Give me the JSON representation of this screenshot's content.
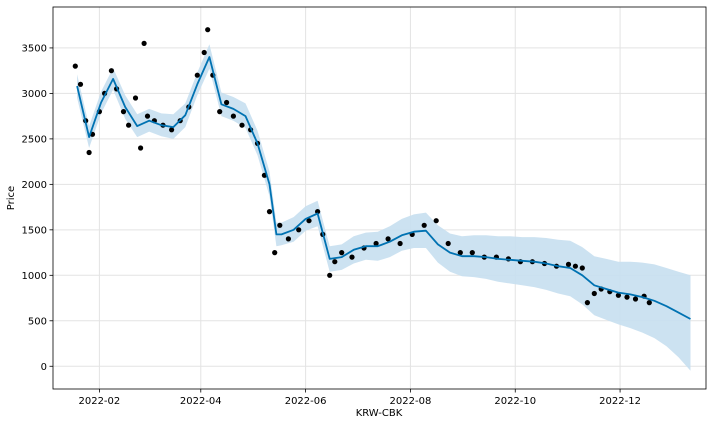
{
  "chart_data": {
    "type": "scatter",
    "title": "",
    "xlabel": "KRW-CBK",
    "ylabel": "Price",
    "grid": true,
    "x_ticks": [
      "2022-02",
      "2022-04",
      "2022-06",
      "2022-08",
      "2022-10",
      "2022-12"
    ],
    "y_ticks": [
      0,
      500,
      1000,
      1500,
      2000,
      2500,
      3000,
      3500
    ],
    "xlim": [
      "2022-01-05",
      "2023-01-20"
    ],
    "ylim": [
      -250,
      3950
    ],
    "colors": {
      "observed": "#000000",
      "forecast": "#0072B2",
      "uncertainty": "#c6dff0",
      "grid": "#e3e3e3"
    },
    "forecast": {
      "x": [
        "2022-01-19",
        "2022-01-26",
        "2022-02-02",
        "2022-02-09",
        "2022-02-16",
        "2022-02-23",
        "2022-03-02",
        "2022-03-09",
        "2022-03-16",
        "2022-03-23",
        "2022-03-30",
        "2022-04-06",
        "2022-04-13",
        "2022-04-20",
        "2022-04-27",
        "2022-05-04",
        "2022-05-11",
        "2022-05-15",
        "2022-05-18",
        "2022-05-25",
        "2022-06-01",
        "2022-06-08",
        "2022-06-15",
        "2022-06-22",
        "2022-06-29",
        "2022-07-06",
        "2022-07-13",
        "2022-07-20",
        "2022-07-27",
        "2022-08-03",
        "2022-08-10",
        "2022-08-17",
        "2022-08-24",
        "2022-08-31",
        "2022-09-07",
        "2022-09-14",
        "2022-09-21",
        "2022-09-28",
        "2022-10-05",
        "2022-10-12",
        "2022-10-19",
        "2022-10-26",
        "2022-11-02",
        "2022-11-09",
        "2022-11-16",
        "2022-11-23",
        "2022-11-30",
        "2022-12-07",
        "2022-12-14",
        "2022-12-21",
        "2022-12-28",
        "2023-01-04",
        "2023-01-11"
      ],
      "yhat": [
        3080,
        2520,
        2900,
        3160,
        2850,
        2640,
        2700,
        2650,
        2630,
        2760,
        3100,
        3400,
        2880,
        2830,
        2750,
        2450,
        2000,
        1450,
        1450,
        1500,
        1620,
        1680,
        1180,
        1200,
        1280,
        1320,
        1320,
        1370,
        1440,
        1480,
        1490,
        1340,
        1250,
        1210,
        1210,
        1200,
        1180,
        1170,
        1160,
        1150,
        1130,
        1100,
        1080,
        1000,
        890,
        850,
        810,
        790,
        760,
        720,
        660,
        590,
        520
      ],
      "yhat_lower": [
        2950,
        2400,
        2780,
        3040,
        2720,
        2520,
        2580,
        2530,
        2500,
        2630,
        2980,
        3270,
        2750,
        2700,
        2620,
        2320,
        1870,
        1320,
        1330,
        1370,
        1490,
        1540,
        1040,
        1060,
        1130,
        1170,
        1160,
        1200,
        1270,
        1300,
        1300,
        1140,
        1040,
        990,
        980,
        960,
        930,
        910,
        890,
        870,
        840,
        800,
        770,
        680,
        560,
        510,
        460,
        420,
        370,
        310,
        220,
        100,
        -50
      ],
      "yhat_upper": [
        3210,
        2640,
        3020,
        3280,
        2980,
        2770,
        2830,
        2780,
        2770,
        2890,
        3230,
        3540,
        3010,
        2960,
        2890,
        2590,
        2140,
        1580,
        1580,
        1640,
        1760,
        1820,
        1320,
        1340,
        1430,
        1470,
        1480,
        1540,
        1620,
        1670,
        1690,
        1550,
        1460,
        1430,
        1440,
        1440,
        1430,
        1430,
        1420,
        1420,
        1410,
        1390,
        1380,
        1310,
        1210,
        1180,
        1150,
        1150,
        1140,
        1120,
        1080,
        1040,
        1000
      ]
    },
    "observed": {
      "x": [
        "2022-01-18",
        "2022-01-21",
        "2022-01-24",
        "2022-01-26",
        "2022-01-28",
        "2022-02-01",
        "2022-02-04",
        "2022-02-08",
        "2022-02-11",
        "2022-02-15",
        "2022-02-18",
        "2022-02-22",
        "2022-02-25",
        "2022-02-27",
        "2022-03-01",
        "2022-03-05",
        "2022-03-10",
        "2022-03-15",
        "2022-03-20",
        "2022-03-25",
        "2022-03-30",
        "2022-04-03",
        "2022-04-05",
        "2022-04-08",
        "2022-04-12",
        "2022-04-16",
        "2022-04-20",
        "2022-04-25",
        "2022-04-30",
        "2022-05-04",
        "2022-05-08",
        "2022-05-11",
        "2022-05-14",
        "2022-05-17",
        "2022-05-22",
        "2022-05-28",
        "2022-06-03",
        "2022-06-08",
        "2022-06-11",
        "2022-06-15",
        "2022-06-18",
        "2022-06-22",
        "2022-06-28",
        "2022-07-05",
        "2022-07-12",
        "2022-07-19",
        "2022-07-26",
        "2022-08-02",
        "2022-08-09",
        "2022-08-16",
        "2022-08-23",
        "2022-08-30",
        "2022-09-06",
        "2022-09-13",
        "2022-09-20",
        "2022-09-27",
        "2022-10-04",
        "2022-10-11",
        "2022-10-18",
        "2022-10-25",
        "2022-11-01",
        "2022-11-05",
        "2022-11-09",
        "2022-11-12",
        "2022-11-16",
        "2022-11-20",
        "2022-11-25",
        "2022-11-30",
        "2022-12-05",
        "2022-12-10",
        "2022-12-15",
        "2022-12-18"
      ],
      "y": [
        3300,
        3100,
        2700,
        2350,
        2550,
        2800,
        3000,
        3250,
        3050,
        2800,
        2650,
        2950,
        2400,
        3550,
        2750,
        2700,
        2650,
        2600,
        2700,
        2850,
        3200,
        3450,
        3700,
        3200,
        2800,
        2900,
        2750,
        2650,
        2600,
        2450,
        2100,
        1700,
        1250,
        1550,
        1400,
        1500,
        1600,
        1700,
        1450,
        1000,
        1150,
        1250,
        1200,
        1300,
        1350,
        1400,
        1350,
        1450,
        1550,
        1600,
        1350,
        1250,
        1250,
        1200,
        1200,
        1180,
        1150,
        1150,
        1130,
        1100,
        1120,
        1100,
        1080,
        700,
        800,
        850,
        820,
        780,
        760,
        740,
        770,
        700
      ]
    }
  }
}
